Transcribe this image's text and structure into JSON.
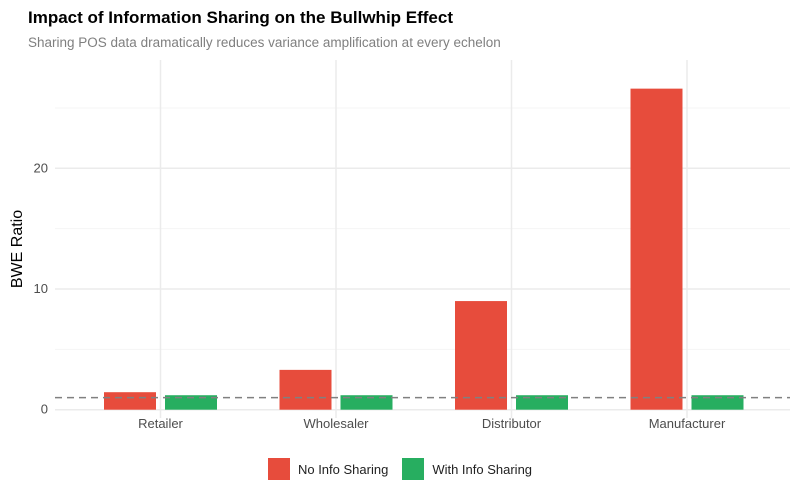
{
  "chart_data": {
    "type": "bar",
    "title": "Impact of Information Sharing on the Bullwhip Effect",
    "subtitle": "Sharing POS data dramatically reduces variance amplification at every echelon",
    "xlabel": "",
    "ylabel": "BWE Ratio",
    "categories": [
      "Retailer",
      "Wholesaler",
      "Distributor",
      "Manufacturer"
    ],
    "series": [
      {
        "name": "No Info Sharing",
        "color": "#E74C3C",
        "values": [
          1.45,
          3.3,
          9.0,
          26.6
        ]
      },
      {
        "name": "With Info Sharing",
        "color": "#27AE60",
        "values": [
          1.2,
          1.2,
          1.2,
          1.2
        ]
      }
    ],
    "ylim": [
      0,
      28.5
    ],
    "yticks": [
      0,
      10,
      20
    ],
    "reference_line": {
      "y": 1,
      "style": "dashed",
      "color": "#808080"
    },
    "grid": true,
    "legend_position": "bottom"
  }
}
